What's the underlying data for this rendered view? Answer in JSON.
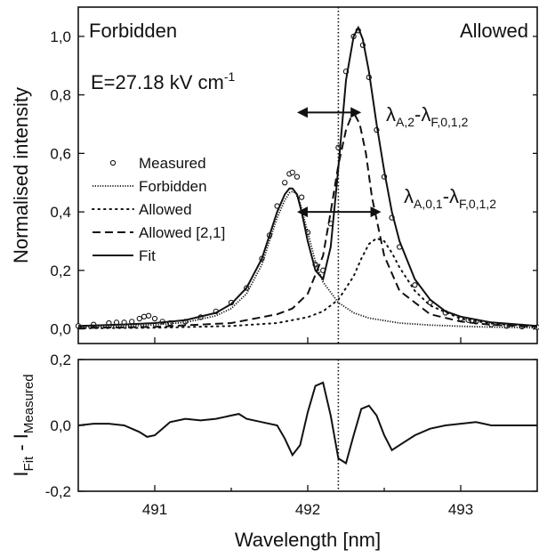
{
  "chart_data": [
    {
      "type": "line",
      "xlabel": "Wavelength [nm]",
      "ylabel": "Normalised intensity",
      "xlim": [
        490.5,
        493.5
      ],
      "ylim": [
        -0.05,
        1.1
      ],
      "xticks": [
        491,
        492,
        493
      ],
      "yticks": [
        "0,0",
        "0,2",
        "0,4",
        "0,6",
        "0,8",
        "1,0"
      ],
      "ytick_values": [
        0,
        0.2,
        0.4,
        0.6,
        0.8,
        1.0
      ],
      "legend_position": "center-left",
      "annotations": {
        "left_label": "Forbidden",
        "right_label": "Allowed",
        "field_text": "E=27.18 kV cm",
        "field_exp": "-1",
        "lambda_a2": {
          "main": "λ",
          "sub1": "A,2",
          "dash": "-λ",
          "sub2": "F,0,1,2"
        },
        "lambda_a01": {
          "main": "λ",
          "sub1": "A,0,1",
          "dash": "-λ",
          "sub2": "F,0,1,2"
        }
      },
      "vline_x": 492.2,
      "arrows": [
        {
          "from_x": 491.93,
          "to_x": 492.35,
          "y": 0.74
        },
        {
          "from_x": 491.93,
          "to_x": 492.48,
          "y": 0.4
        }
      ],
      "series": [
        {
          "name": "Measured",
          "style": "circles",
          "x": [
            490.5,
            490.6,
            490.7,
            490.75,
            490.8,
            490.85,
            490.9,
            490.93,
            490.96,
            491.0,
            491.05,
            491.1,
            491.2,
            491.3,
            491.4,
            491.5,
            491.6,
            491.7,
            491.75,
            491.8,
            491.85,
            491.88,
            491.9,
            491.93,
            491.96,
            492.0,
            492.05,
            492.1,
            492.15,
            492.2,
            492.25,
            492.3,
            492.33,
            492.36,
            492.4,
            492.45,
            492.5,
            492.55,
            492.6,
            492.7,
            492.8,
            492.9,
            493.0,
            493.05,
            493.1,
            493.2,
            493.3,
            493.4,
            493.5
          ],
          "y": [
            0.01,
            0.015,
            0.02,
            0.022,
            0.022,
            0.025,
            0.035,
            0.042,
            0.045,
            0.035,
            0.025,
            0.02,
            0.025,
            0.04,
            0.06,
            0.09,
            0.14,
            0.24,
            0.32,
            0.42,
            0.5,
            0.53,
            0.535,
            0.52,
            0.45,
            0.33,
            0.22,
            0.2,
            0.36,
            0.62,
            0.88,
            1.0,
            1.02,
            0.97,
            0.86,
            0.68,
            0.52,
            0.38,
            0.28,
            0.15,
            0.09,
            0.055,
            0.035,
            0.03,
            0.025,
            0.015,
            0.01,
            0.008,
            0.006
          ]
        },
        {
          "name": "Forbidden",
          "style": "dense-dots",
          "x": [
            490.5,
            490.8,
            491.0,
            491.2,
            491.4,
            491.5,
            491.6,
            491.7,
            491.75,
            491.8,
            491.85,
            491.88,
            491.9,
            491.92,
            491.95,
            492.0,
            492.05,
            492.1,
            492.2,
            492.3,
            492.4,
            492.6,
            492.8,
            493.0,
            493.2,
            493.5
          ],
          "y": [
            0.005,
            0.009,
            0.014,
            0.022,
            0.045,
            0.07,
            0.12,
            0.22,
            0.3,
            0.38,
            0.44,
            0.465,
            0.47,
            0.465,
            0.43,
            0.33,
            0.23,
            0.16,
            0.09,
            0.055,
            0.037,
            0.02,
            0.013,
            0.009,
            0.006,
            0.004
          ]
        },
        {
          "name": "Allowed",
          "style": "sparse-dots",
          "x": [
            490.5,
            491.0,
            491.5,
            491.8,
            492.0,
            492.1,
            492.2,
            492.3,
            492.35,
            492.4,
            492.45,
            492.5,
            492.55,
            492.6,
            492.7,
            492.8,
            493.0,
            493.2,
            493.5
          ],
          "y": [
            0.002,
            0.004,
            0.01,
            0.02,
            0.04,
            0.06,
            0.1,
            0.18,
            0.24,
            0.29,
            0.31,
            0.3,
            0.26,
            0.21,
            0.13,
            0.08,
            0.035,
            0.018,
            0.008
          ]
        },
        {
          "name": "Allowed [2,1]",
          "style": "dashed",
          "x": [
            490.5,
            491.0,
            491.5,
            491.8,
            491.9,
            492.0,
            492.1,
            492.15,
            492.2,
            492.25,
            492.28,
            492.31,
            492.34,
            492.38,
            492.42,
            492.5,
            492.6,
            492.8,
            493.0,
            493.2,
            493.5
          ],
          "y": [
            0.003,
            0.007,
            0.02,
            0.05,
            0.07,
            0.12,
            0.25,
            0.4,
            0.56,
            0.68,
            0.72,
            0.73,
            0.7,
            0.6,
            0.45,
            0.25,
            0.13,
            0.05,
            0.025,
            0.014,
            0.007
          ]
        },
        {
          "name": "Fit",
          "style": "solid",
          "x": [
            490.5,
            490.8,
            491.0,
            491.2,
            491.4,
            491.5,
            491.6,
            491.7,
            491.75,
            491.8,
            491.85,
            491.88,
            491.9,
            491.93,
            491.96,
            492.0,
            492.05,
            492.1,
            492.15,
            492.2,
            492.25,
            492.3,
            492.33,
            492.36,
            492.4,
            492.45,
            492.5,
            492.55,
            492.6,
            492.7,
            492.8,
            492.9,
            493.0,
            493.2,
            493.5
          ],
          "y": [
            0.01,
            0.015,
            0.02,
            0.03,
            0.055,
            0.085,
            0.14,
            0.24,
            0.32,
            0.4,
            0.46,
            0.48,
            0.48,
            0.46,
            0.4,
            0.3,
            0.2,
            0.17,
            0.28,
            0.55,
            0.85,
            1.0,
            1.03,
            0.99,
            0.88,
            0.7,
            0.54,
            0.4,
            0.3,
            0.17,
            0.1,
            0.06,
            0.042,
            0.022,
            0.01
          ]
        }
      ]
    },
    {
      "type": "line",
      "xlabel": "Wavelength [nm]",
      "ylabel_main": "I",
      "ylabel_sub1": "Fit",
      "ylabel_mid": " - I",
      "ylabel_sub2": "Measured",
      "xlim": [
        490.5,
        493.5
      ],
      "ylim": [
        -0.2,
        0.2
      ],
      "xticks": [
        "491",
        "492",
        "493"
      ],
      "xtick_values": [
        491,
        492,
        493
      ],
      "yticks": [
        "-0,2",
        "0,0",
        "0,2"
      ],
      "ytick_values": [
        -0.2,
        0,
        0.2
      ],
      "vline_x": 492.2,
      "series": [
        {
          "name": "",
          "style": "solid",
          "x": [
            490.5,
            490.6,
            490.7,
            490.8,
            490.9,
            490.95,
            491.0,
            491.05,
            491.1,
            491.2,
            491.3,
            491.4,
            491.5,
            491.55,
            491.6,
            491.7,
            491.8,
            491.85,
            491.9,
            491.95,
            492.0,
            492.05,
            492.1,
            492.15,
            492.2,
            492.25,
            492.3,
            492.35,
            492.4,
            492.45,
            492.5,
            492.55,
            492.6,
            492.7,
            492.8,
            492.9,
            493.0,
            493.1,
            493.2,
            493.3,
            493.4,
            493.5
          ],
          "y": [
            0.0,
            0.005,
            0.005,
            0.0,
            -0.02,
            -0.035,
            -0.03,
            -0.01,
            0.01,
            0.02,
            0.015,
            0.02,
            0.03,
            0.035,
            0.02,
            0.01,
            0.0,
            -0.04,
            -0.09,
            -0.06,
            0.04,
            0.12,
            0.13,
            0.03,
            -0.1,
            -0.115,
            -0.03,
            0.05,
            0.06,
            0.03,
            -0.03,
            -0.075,
            -0.06,
            -0.03,
            -0.01,
            0.0,
            0.005,
            0.01,
            0.0,
            0.0,
            0.0,
            0.0
          ]
        }
      ]
    }
  ]
}
